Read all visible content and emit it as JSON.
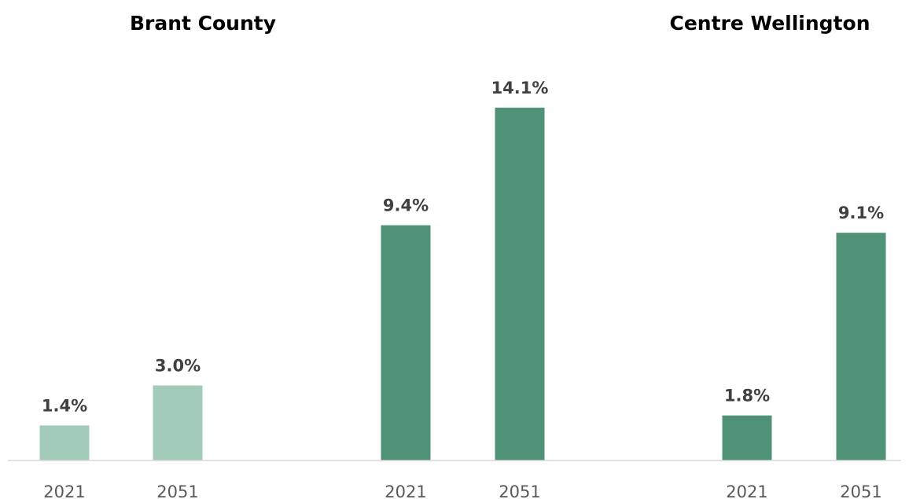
{
  "chart_data": {
    "type": "bar",
    "groups": [
      {
        "title": "Brant County",
        "color": "#a2cbb9",
        "categories": [
          "2021",
          "2051"
        ],
        "values": [
          1.4,
          3.0
        ],
        "labels": [
          "1.4%",
          "3.0%"
        ]
      },
      {
        "title": "",
        "color": "#4f9276",
        "categories": [
          "2021",
          "2051"
        ],
        "values": [
          9.4,
          14.1
        ],
        "labels": [
          "9.4%",
          "14.1%"
        ]
      },
      {
        "title": "Centre Wellington",
        "color": "#4f9276",
        "categories": [
          "2021",
          "2051"
        ],
        "values": [
          1.8,
          9.1
        ],
        "labels": [
          "1.8%",
          "9.1%"
        ]
      }
    ],
    "ylim": [
      0,
      14.1
    ],
    "grid": false,
    "legend": "none",
    "axis_color": "#d9d9d9"
  }
}
